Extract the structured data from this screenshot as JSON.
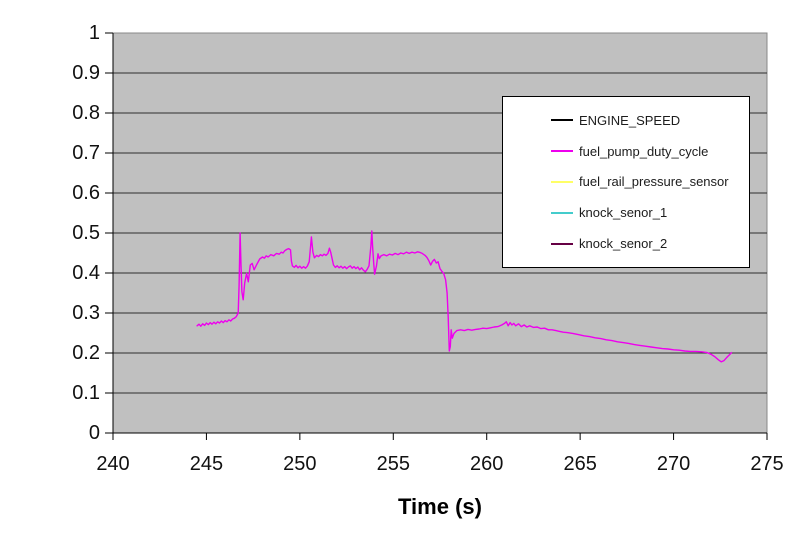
{
  "chart_data": {
    "type": "line",
    "title": "",
    "xlabel": "Time (s)",
    "ylabel": "",
    "xlim": [
      240,
      275
    ],
    "ylim": [
      0,
      1
    ],
    "x_ticks": [
      240,
      245,
      250,
      255,
      260,
      265,
      270,
      275
    ],
    "x_tick_labels": [
      "240",
      "245",
      "250",
      "255",
      "260",
      "265",
      "270",
      "275"
    ],
    "y_ticks": [
      0,
      0.1,
      0.2,
      0.3,
      0.4,
      0.5,
      0.6,
      0.7,
      0.8,
      0.9,
      1
    ],
    "y_tick_labels": [
      "0",
      "0.1",
      "0.2",
      "0.3",
      "0.4",
      "0.5",
      "0.6",
      "0.7",
      "0.8",
      "0.9",
      "1"
    ],
    "grid": "horizontal",
    "legend_position": "inside-upper-right",
    "colors": {
      "background": "#ffffff",
      "plot_bg": "#c0c0c0",
      "plot_border": "#888888",
      "gridline": "#2e2e2e",
      "axis": "#000000",
      "tick_label": "#111111"
    },
    "series": [
      {
        "name": "ENGINE_SPEED",
        "color": "#000000",
        "points": []
      },
      {
        "name": "fuel_pump_duty_cycle",
        "color": "#ee00ee",
        "points": [
          [
            244.5,
            0.268
          ],
          [
            244.6,
            0.272
          ],
          [
            244.7,
            0.267
          ],
          [
            244.8,
            0.273
          ],
          [
            244.9,
            0.269
          ],
          [
            245.0,
            0.275
          ],
          [
            245.1,
            0.271
          ],
          [
            245.2,
            0.276
          ],
          [
            245.3,
            0.272
          ],
          [
            245.4,
            0.277
          ],
          [
            245.5,
            0.273
          ],
          [
            245.6,
            0.278
          ],
          [
            245.7,
            0.275
          ],
          [
            245.8,
            0.28
          ],
          [
            245.9,
            0.276
          ],
          [
            246.0,
            0.281
          ],
          [
            246.1,
            0.278
          ],
          [
            246.2,
            0.283
          ],
          [
            246.3,
            0.28
          ],
          [
            246.4,
            0.285
          ],
          [
            246.5,
            0.287
          ],
          [
            246.6,
            0.291
          ],
          [
            246.7,
            0.3
          ],
          [
            246.75,
            0.37
          ],
          [
            246.8,
            0.5
          ],
          [
            246.85,
            0.42
          ],
          [
            246.9,
            0.353
          ],
          [
            246.97,
            0.333
          ],
          [
            247.05,
            0.375
          ],
          [
            247.15,
            0.399
          ],
          [
            247.24,
            0.378
          ],
          [
            247.35,
            0.42
          ],
          [
            247.45,
            0.424
          ],
          [
            247.55,
            0.408
          ],
          [
            247.7,
            0.422
          ],
          [
            247.85,
            0.435
          ],
          [
            248.0,
            0.44
          ],
          [
            248.1,
            0.437
          ],
          [
            248.2,
            0.443
          ],
          [
            248.3,
            0.44
          ],
          [
            248.45,
            0.446
          ],
          [
            248.6,
            0.443
          ],
          [
            248.75,
            0.449
          ],
          [
            248.9,
            0.447
          ],
          [
            249.0,
            0.452
          ],
          [
            249.1,
            0.45
          ],
          [
            249.2,
            0.456
          ],
          [
            249.3,
            0.459
          ],
          [
            249.4,
            0.461
          ],
          [
            249.5,
            0.458
          ],
          [
            249.55,
            0.43
          ],
          [
            249.6,
            0.418
          ],
          [
            249.7,
            0.414
          ],
          [
            249.8,
            0.419
          ],
          [
            249.9,
            0.413
          ],
          [
            250.0,
            0.417
          ],
          [
            250.1,
            0.412
          ],
          [
            250.2,
            0.416
          ],
          [
            250.3,
            0.412
          ],
          [
            250.4,
            0.417
          ],
          [
            250.5,
            0.428
          ],
          [
            250.58,
            0.47
          ],
          [
            250.62,
            0.49
          ],
          [
            250.7,
            0.452
          ],
          [
            250.78,
            0.438
          ],
          [
            250.9,
            0.444
          ],
          [
            251.0,
            0.441
          ],
          [
            251.1,
            0.446
          ],
          [
            251.2,
            0.443
          ],
          [
            251.3,
            0.447
          ],
          [
            251.4,
            0.444
          ],
          [
            251.5,
            0.449
          ],
          [
            251.58,
            0.462
          ],
          [
            251.65,
            0.452
          ],
          [
            251.72,
            0.437
          ],
          [
            251.8,
            0.42
          ],
          [
            251.9,
            0.414
          ],
          [
            252.0,
            0.418
          ],
          [
            252.1,
            0.413
          ],
          [
            252.2,
            0.417
          ],
          [
            252.3,
            0.412
          ],
          [
            252.4,
            0.416
          ],
          [
            252.5,
            0.411
          ],
          [
            252.6,
            0.415
          ],
          [
            252.7,
            0.418
          ],
          [
            252.8,
            0.412
          ],
          [
            252.9,
            0.416
          ],
          [
            253.0,
            0.411
          ],
          [
            253.1,
            0.415
          ],
          [
            253.2,
            0.408
          ],
          [
            253.3,
            0.413
          ],
          [
            253.4,
            0.407
          ],
          [
            253.5,
            0.403
          ],
          [
            253.6,
            0.409
          ],
          [
            253.7,
            0.418
          ],
          [
            253.8,
            0.468
          ],
          [
            253.85,
            0.505
          ],
          [
            253.9,
            0.462
          ],
          [
            253.95,
            0.425
          ],
          [
            254.0,
            0.397
          ],
          [
            254.1,
            0.418
          ],
          [
            254.18,
            0.448
          ],
          [
            254.25,
            0.436
          ],
          [
            254.35,
            0.443
          ],
          [
            254.5,
            0.446
          ],
          [
            254.65,
            0.443
          ],
          [
            254.8,
            0.447
          ],
          [
            254.95,
            0.445
          ],
          [
            255.1,
            0.449
          ],
          [
            255.25,
            0.446
          ],
          [
            255.4,
            0.45
          ],
          [
            255.55,
            0.448
          ],
          [
            255.7,
            0.452
          ],
          [
            255.85,
            0.449
          ],
          [
            256.0,
            0.452
          ],
          [
            256.15,
            0.45
          ],
          [
            256.3,
            0.453
          ],
          [
            256.45,
            0.451
          ],
          [
            256.55,
            0.449
          ],
          [
            256.7,
            0.444
          ],
          [
            256.8,
            0.439
          ],
          [
            256.9,
            0.431
          ],
          [
            257.0,
            0.42
          ],
          [
            257.1,
            0.429
          ],
          [
            257.2,
            0.434
          ],
          [
            257.3,
            0.425
          ],
          [
            257.4,
            0.428
          ],
          [
            257.5,
            0.411
          ],
          [
            257.6,
            0.404
          ],
          [
            257.7,
            0.399
          ],
          [
            257.8,
            0.383
          ],
          [
            257.88,
            0.35
          ],
          [
            257.94,
            0.29
          ],
          [
            258.0,
            0.205
          ],
          [
            258.05,
            0.216
          ],
          [
            258.1,
            0.258
          ],
          [
            258.16,
            0.237
          ],
          [
            258.25,
            0.249
          ],
          [
            258.4,
            0.256
          ],
          [
            258.6,
            0.258
          ],
          [
            258.8,
            0.256
          ],
          [
            259.0,
            0.259
          ],
          [
            259.2,
            0.257
          ],
          [
            259.4,
            0.259
          ],
          [
            259.6,
            0.26
          ],
          [
            259.8,
            0.262
          ],
          [
            260.0,
            0.261
          ],
          [
            260.2,
            0.263
          ],
          [
            260.4,
            0.265
          ],
          [
            260.6,
            0.266
          ],
          [
            260.8,
            0.27
          ],
          [
            260.95,
            0.274
          ],
          [
            261.05,
            0.278
          ],
          [
            261.15,
            0.268
          ],
          [
            261.25,
            0.276
          ],
          [
            261.35,
            0.27
          ],
          [
            261.45,
            0.274
          ],
          [
            261.55,
            0.268
          ],
          [
            261.7,
            0.273
          ],
          [
            261.85,
            0.266
          ],
          [
            262.0,
            0.27
          ],
          [
            262.15,
            0.265
          ],
          [
            262.3,
            0.268
          ],
          [
            262.5,
            0.264
          ],
          [
            262.7,
            0.265
          ],
          [
            262.9,
            0.261
          ],
          [
            263.1,
            0.262
          ],
          [
            263.3,
            0.258
          ],
          [
            263.5,
            0.258
          ],
          [
            263.7,
            0.256
          ],
          [
            263.9,
            0.254
          ],
          [
            264.1,
            0.252
          ],
          [
            264.3,
            0.251
          ],
          [
            264.6,
            0.249
          ],
          [
            264.9,
            0.246
          ],
          [
            265.2,
            0.243
          ],
          [
            265.5,
            0.241
          ],
          [
            265.8,
            0.238
          ],
          [
            266.1,
            0.236
          ],
          [
            266.4,
            0.233
          ],
          [
            266.7,
            0.231
          ],
          [
            267.0,
            0.228
          ],
          [
            267.3,
            0.226
          ],
          [
            267.6,
            0.224
          ],
          [
            267.9,
            0.221
          ],
          [
            268.2,
            0.219
          ],
          [
            268.5,
            0.217
          ],
          [
            268.8,
            0.215
          ],
          [
            269.1,
            0.213
          ],
          [
            269.4,
            0.211
          ],
          [
            269.7,
            0.21
          ],
          [
            270.0,
            0.208
          ],
          [
            270.3,
            0.207
          ],
          [
            270.6,
            0.205
          ],
          [
            270.9,
            0.204
          ],
          [
            271.2,
            0.204
          ],
          [
            271.5,
            0.203
          ],
          [
            271.8,
            0.201
          ],
          [
            272.0,
            0.197
          ],
          [
            272.2,
            0.191
          ],
          [
            272.4,
            0.183
          ],
          [
            272.55,
            0.178
          ],
          [
            272.7,
            0.181
          ],
          [
            272.85,
            0.189
          ],
          [
            273.0,
            0.196
          ],
          [
            273.1,
            0.201
          ]
        ]
      },
      {
        "name": "fuel_rail_pressure_sensor",
        "color": "#ffff66",
        "points": []
      },
      {
        "name": "knock_senor_1",
        "color": "#44cccc",
        "points": []
      },
      {
        "name": "knock_senor_2",
        "color": "#660044",
        "points": []
      }
    ]
  }
}
